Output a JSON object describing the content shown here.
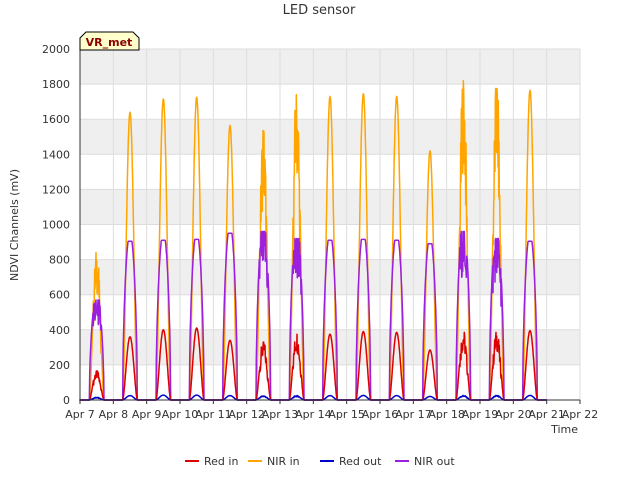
{
  "chart_data": {
    "type": "line",
    "title": "LED sensor",
    "xlabel": "Time",
    "ylabel": "NDVI Channels (mV)",
    "ylim": [
      0,
      2000
    ],
    "xlim": [
      0,
      15
    ],
    "yticks": [
      0,
      200,
      400,
      600,
      800,
      1000,
      1200,
      1400,
      1600,
      1800,
      2000
    ],
    "xtick_labels": [
      "Apr 7",
      "Apr 8",
      "Apr 9",
      "Apr 10",
      "Apr 11",
      "Apr 12",
      "Apr 13",
      "Apr 14",
      "Apr 15",
      "Apr 16",
      "Apr 17",
      "Apr 18",
      "Apr 19",
      "Apr 20",
      "Apr 21",
      "Apr 22"
    ],
    "grid": true,
    "badge": "VR_met",
    "legend_position": "bottom",
    "series": [
      {
        "name": "Red in",
        "color": "#dd0000",
        "days": [
          0,
          1,
          2,
          3,
          4,
          5,
          6,
          7,
          8,
          9,
          10,
          11,
          12,
          13
        ],
        "daily_peaks": [
          165,
          360,
          400,
          410,
          340,
          330,
          375,
          375,
          390,
          385,
          285,
          385,
          385,
          395
        ]
      },
      {
        "name": "NIR in",
        "color": "#ffa500",
        "days": [
          0,
          1,
          2,
          3,
          4,
          5,
          6,
          7,
          8,
          9,
          10,
          11,
          12,
          13
        ],
        "daily_peaks": [
          840,
          1640,
          1715,
          1725,
          1565,
          1535,
          1740,
          1730,
          1745,
          1730,
          1420,
          1820,
          1775,
          1765
        ]
      },
      {
        "name": "Red out",
        "color": "#0000cc",
        "days": [
          0,
          1,
          2,
          3,
          4,
          5,
          6,
          7,
          8,
          9,
          10,
          11,
          12,
          13
        ],
        "daily_peaks": [
          15,
          25,
          28,
          28,
          25,
          24,
          25,
          25,
          26,
          25,
          20,
          26,
          26,
          26
        ]
      },
      {
        "name": "NIR out",
        "color": "#9a1fdf",
        "days": [
          0,
          1,
          2,
          3,
          4,
          5,
          6,
          7,
          8,
          9,
          10,
          11,
          12,
          13
        ],
        "daily_peaks": [
          570,
          905,
          910,
          915,
          950,
          960,
          920,
          910,
          915,
          910,
          890,
          960,
          920,
          905
        ]
      }
    ]
  },
  "colors": {
    "plot_band": "#efefef",
    "plot_bg": "#ffffff",
    "grid": "#dddddd",
    "badge_bg": "#ffffcc"
  }
}
